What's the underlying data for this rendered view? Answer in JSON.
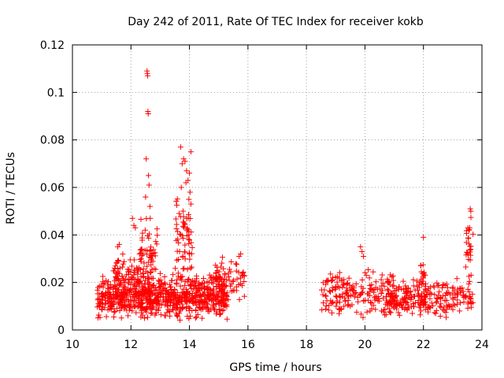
{
  "chart_data": {
    "type": "scatter",
    "title": "Day 242 of 2011, Rate Of TEC Index for receiver kokb",
    "xlabel": "GPS time / hours",
    "ylabel": "ROTI / TECUs",
    "xlim": [
      10,
      24
    ],
    "ylim": [
      0,
      0.12
    ],
    "x_ticks": [
      "10",
      "12",
      "14",
      "16",
      "18",
      "20",
      "22",
      "24"
    ],
    "y_ticks": [
      "0",
      "0.02",
      "0.04",
      "0.06",
      "0.08",
      "0.1",
      "0.12"
    ],
    "grid": true,
    "marker": "plus",
    "series_color": "#ff0000",
    "clusters": [
      {
        "x_range": [
          10.85,
          15.3
        ],
        "y_range": [
          0.004,
          0.024
        ],
        "count": 820
      },
      {
        "x_range": [
          11.4,
          12.7
        ],
        "y_range": [
          0.015,
          0.034
        ],
        "count": 90
      },
      {
        "x_range": [
          12.3,
          12.9
        ],
        "y_range": [
          0.02,
          0.05
        ],
        "count": 40
      },
      {
        "x_range": [
          13.5,
          14.1
        ],
        "y_range": [
          0.02,
          0.06
        ],
        "count": 60
      },
      {
        "x_range": [
          14.8,
          15.9
        ],
        "y_range": [
          0.012,
          0.032
        ],
        "count": 60
      },
      {
        "x_range": [
          18.5,
          21.0
        ],
        "y_range": [
          0.005,
          0.026
        ],
        "count": 200
      },
      {
        "x_range": [
          20.8,
          23.7
        ],
        "y_range": [
          0.005,
          0.022
        ],
        "count": 260
      },
      {
        "x_range": [
          21.9,
          22.1
        ],
        "y_range": [
          0.015,
          0.03
        ],
        "count": 15
      },
      {
        "x_range": [
          23.4,
          23.7
        ],
        "y_range": [
          0.015,
          0.05
        ],
        "count": 25
      }
    ],
    "points": [
      [
        12.55,
        0.109
      ],
      [
        12.56,
        0.108
      ],
      [
        12.57,
        0.107
      ],
      [
        12.58,
        0.092
      ],
      [
        12.59,
        0.091
      ],
      [
        12.52,
        0.072
      ],
      [
        12.6,
        0.065
      ],
      [
        12.62,
        0.061
      ],
      [
        12.5,
        0.056
      ],
      [
        12.65,
        0.052
      ],
      [
        13.7,
        0.077
      ],
      [
        13.8,
        0.072
      ],
      [
        13.85,
        0.071
      ],
      [
        13.75,
        0.07
      ],
      [
        13.9,
        0.067
      ],
      [
        14.0,
        0.066
      ],
      [
        14.05,
        0.075
      ],
      [
        13.95,
        0.063
      ],
      [
        13.88,
        0.062
      ],
      [
        13.72,
        0.06
      ],
      [
        14.02,
        0.058
      ],
      [
        13.98,
        0.055
      ],
      [
        14.05,
        0.053
      ],
      [
        13.78,
        0.05
      ],
      [
        13.65,
        0.049
      ],
      [
        11.6,
        0.036
      ],
      [
        11.55,
        0.035
      ],
      [
        12.05,
        0.047
      ],
      [
        12.1,
        0.044
      ],
      [
        12.15,
        0.043
      ],
      [
        19.85,
        0.035
      ],
      [
        19.9,
        0.033
      ],
      [
        19.95,
        0.031
      ],
      [
        22.0,
        0.039
      ],
      [
        23.6,
        0.051
      ],
      [
        23.62,
        0.05
      ],
      [
        23.58,
        0.043
      ],
      [
        23.55,
        0.042
      ],
      [
        15.75,
        0.032
      ],
      [
        15.7,
        0.031
      ]
    ]
  }
}
